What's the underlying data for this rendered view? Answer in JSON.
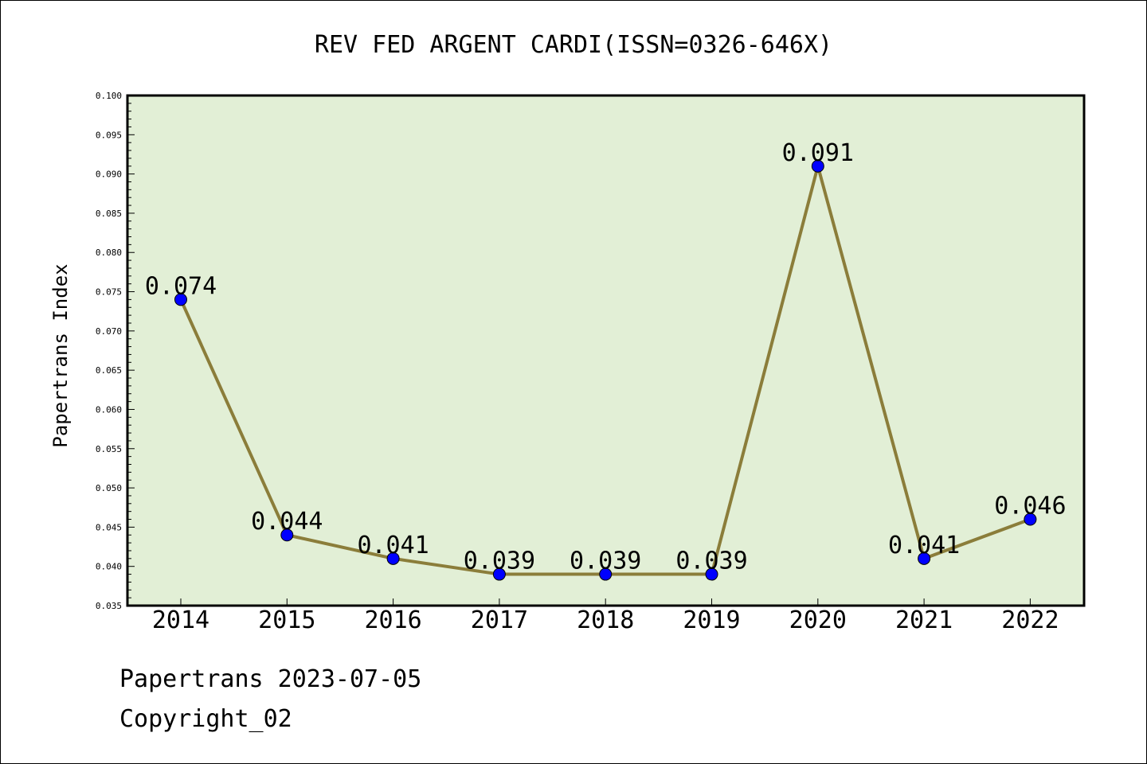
{
  "chart_data": {
    "type": "line",
    "title": "REV FED ARGENT CARDI(ISSN=0326-646X)",
    "xlabel": "",
    "ylabel": "Papertrans Index",
    "categories": [
      "2014",
      "2015",
      "2016",
      "2017",
      "2018",
      "2019",
      "2020",
      "2021",
      "2022"
    ],
    "series": [
      {
        "values": [
          0.074,
          0.044,
          0.041,
          0.039,
          0.039,
          0.039,
          0.091,
          0.041,
          0.046
        ],
        "data_labels": [
          "0.074",
          "0.044",
          "0.041",
          "0.039",
          "0.039",
          "0.039",
          "0.091",
          "0.041",
          "0.046"
        ]
      }
    ],
    "yticks": [
      "0.035",
      "0.040",
      "0.045",
      "0.050",
      "0.055",
      "0.060",
      "0.065",
      "0.070",
      "0.075",
      "0.080",
      "0.085",
      "0.090",
      "0.095",
      "0.100"
    ],
    "ylim": [
      0.035,
      0.1
    ],
    "grid": false,
    "colors": {
      "plot_background": "#e2efd6",
      "line": "#8b7d3a",
      "marker": "#0000ff"
    }
  },
  "footer": {
    "line1": "Papertrans 2023-07-05",
    "line2": "Copyright_02"
  }
}
